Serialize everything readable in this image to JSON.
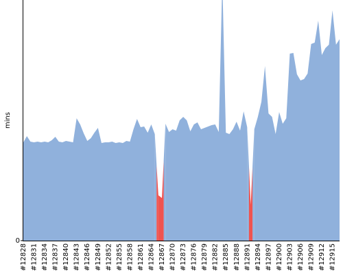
{
  "chart_data": {
    "type": "area",
    "y_label": "mins",
    "categories": [
      "#12828",
      null,
      null,
      "#12831",
      null,
      null,
      "#12834",
      null,
      null,
      "#12837",
      null,
      null,
      "#12840",
      null,
      null,
      "#12843",
      null,
      null,
      "#12846",
      null,
      null,
      "#12849",
      null,
      null,
      "#12852",
      null,
      null,
      "#12855",
      null,
      null,
      "#12858",
      null,
      null,
      "#12861",
      null,
      null,
      "#12864",
      null,
      null,
      "#12867",
      null,
      null,
      "#12870",
      null,
      null,
      "#12873",
      null,
      null,
      "#12876",
      null,
      null,
      "#12879",
      null,
      null,
      "#12882",
      null,
      null,
      "#12885",
      null,
      null,
      "#12888",
      null,
      null,
      "#12891",
      null,
      null,
      "#12894",
      null,
      null,
      "#12897",
      null,
      null,
      "#12900",
      null,
      null,
      "#12903",
      null,
      null,
      "#12906",
      null,
      null,
      "#12909",
      null,
      null,
      "#12912",
      null,
      null,
      "#12915",
      null,
      null
    ],
    "series": [
      {
        "color": "#90b1dc",
        "values": [
          14.3,
          15.2,
          14.4,
          14.3,
          14.4,
          14.3,
          14.4,
          14.3,
          14.6,
          15.1,
          14.4,
          14.3,
          14.5,
          14.4,
          14.3,
          17.8,
          16.9,
          15.6,
          14.5,
          14.9,
          15.7,
          16.4,
          14.2,
          14.3,
          14.3,
          14.4,
          14.2,
          14.3,
          14.2,
          14.5,
          14.4,
          16.2,
          17.7,
          16.5,
          16.6,
          15.7,
          16.9,
          15.5,
          null,
          null,
          17.0,
          15.8,
          16.2,
          16.0,
          17.5,
          18.0,
          17.5,
          15.9,
          16.9,
          17.2,
          16.2,
          16.4,
          16.6,
          16.8,
          16.9,
          15.8,
          38,
          15.7,
          15.5,
          16.2,
          17.3,
          16.0,
          18.8,
          16.5,
          null,
          16.2,
          18.0,
          20.2,
          25.4,
          18.5,
          18.0,
          15.5,
          18.7,
          17.0,
          17.8,
          27.2,
          27.3,
          24.2,
          23.3,
          23.5,
          24.3,
          28.6,
          28.8,
          32.0,
          27.0,
          28.0,
          28.5,
          33.5,
          28.5,
          29.3
        ]
      },
      {
        "color": "#ef5350",
        "values": [
          null,
          null,
          null,
          null,
          null,
          null,
          null,
          null,
          null,
          null,
          null,
          null,
          null,
          null,
          null,
          null,
          null,
          null,
          null,
          null,
          null,
          null,
          null,
          null,
          null,
          null,
          null,
          null,
          null,
          null,
          null,
          null,
          null,
          null,
          null,
          null,
          null,
          null,
          6.6,
          6.2,
          null,
          null,
          null,
          null,
          null,
          null,
          null,
          null,
          null,
          null,
          null,
          null,
          null,
          null,
          null,
          null,
          null,
          null,
          null,
          null,
          null,
          null,
          null,
          null,
          5.2,
          null,
          null,
          null,
          null,
          null,
          null,
          null,
          null,
          null,
          null,
          null,
          null,
          null,
          null,
          null,
          null,
          null,
          null,
          null,
          null,
          null,
          null,
          null,
          null,
          null
        ]
      }
    ],
    "ylim": [
      0,
      35
    ],
    "yticks": [
      0
    ]
  }
}
